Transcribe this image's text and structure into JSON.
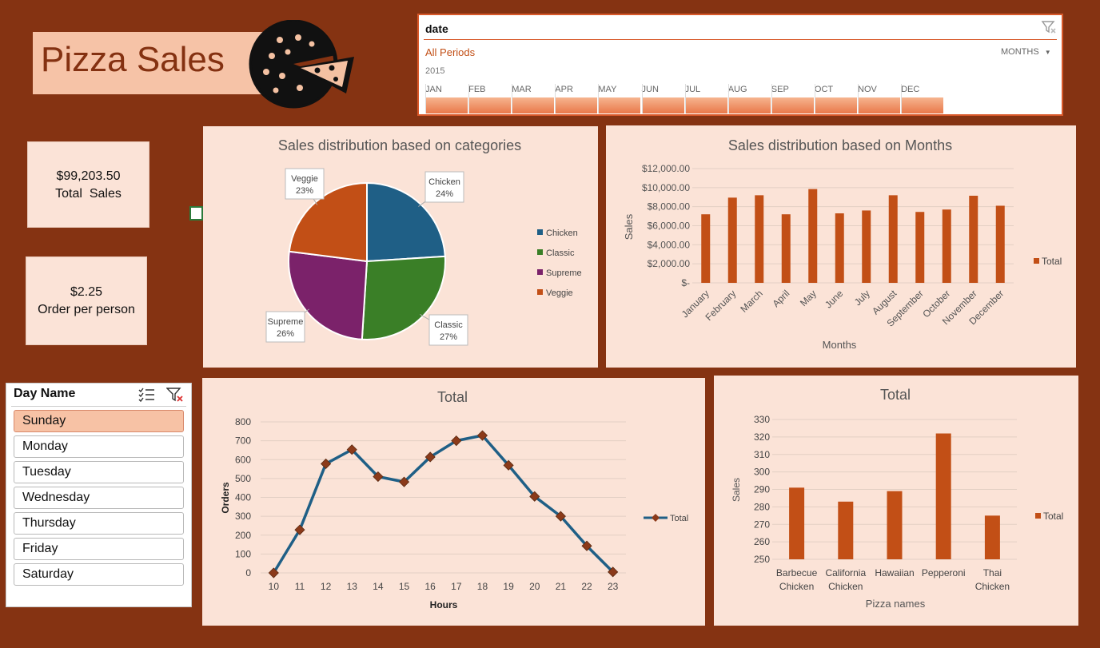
{
  "header": {
    "title": "Pizza Sales",
    "logo_icon": "pizza-icon"
  },
  "kpis": {
    "total_sales_value": "$99,203.50",
    "total_sales_label": "Total  Sales",
    "order_per_person_value": "$2.25",
    "order_per_person_label": "Order per person"
  },
  "timeline": {
    "field": "date",
    "period": "All Periods",
    "unit": "MONTHS",
    "year": "2015",
    "months": [
      "JAN",
      "FEB",
      "MAR",
      "APR",
      "MAY",
      "JUN",
      "JUL",
      "AUG",
      "SEP",
      "OCT",
      "NOV",
      "DEC"
    ],
    "clear_filter_icon": "clear-filter-icon"
  },
  "slicer": {
    "title": "Day Name",
    "multiselect_icon": "multiselect-icon",
    "clear_icon": "clear-filter-icon",
    "items": [
      "Sunday",
      "Monday",
      "Tuesday",
      "Wednesday",
      "Thursday",
      "Friday",
      "Saturday"
    ],
    "selected": "Sunday"
  },
  "chart_data": [
    {
      "type": "pie",
      "title": "Sales distribution based on categories",
      "categories": [
        "Chicken",
        "Classic",
        "Supreme",
        "Veggie"
      ],
      "values": [
        24,
        27,
        26,
        23
      ],
      "labels": [
        "24%",
        "27%",
        "26%",
        "23%"
      ],
      "colors": [
        "#1f5f86",
        "#3a7f27",
        "#7b226a",
        "#c24f16"
      ],
      "legend": "right"
    },
    {
      "type": "bar",
      "title": "Sales distribution based on Months",
      "xlabel": "Months",
      "ylabel": "Sales",
      "categories": [
        "January",
        "February",
        "March",
        "April",
        "May",
        "June",
        "July",
        "August",
        "September",
        "October",
        "November",
        "December"
      ],
      "series": [
        {
          "name": "Total",
          "values": [
            7200,
            8950,
            9200,
            7200,
            9850,
            7300,
            7600,
            9200,
            7450,
            7700,
            9150,
            8100
          ]
        }
      ],
      "ylim": [
        0,
        12000
      ],
      "yticks": [
        "$-",
        "$2,000.00",
        "$4,000.00",
        "$6,000.00",
        "$8,000.00",
        "$10,000.00",
        "$12,000.00"
      ],
      "legend": "right",
      "color": "#c24f16"
    },
    {
      "type": "line",
      "title": "Total",
      "xlabel": "Hours",
      "ylabel": "Orders",
      "x": [
        10,
        11,
        12,
        13,
        14,
        15,
        16,
        17,
        18,
        19,
        20,
        21,
        22,
        23
      ],
      "series": [
        {
          "name": "Total",
          "values": [
            0,
            228,
            578,
            653,
            510,
            482,
            614,
            700,
            728,
            570,
            405,
            300,
            143,
            5
          ]
        }
      ],
      "ylim": [
        0,
        800
      ],
      "yticks": [
        "0",
        "100",
        "200",
        "300",
        "400",
        "500",
        "600",
        "700",
        "800"
      ],
      "legend": "right",
      "line_color": "#1f5f86",
      "marker_color": "#8b3a1a"
    },
    {
      "type": "bar",
      "title": "Total",
      "xlabel": "Pizza names",
      "ylabel": "Sales",
      "categories": [
        [
          "Barbecue",
          "Chicken"
        ],
        [
          "California",
          "Chicken"
        ],
        [
          "Hawaiian"
        ],
        [
          "Pepperoni"
        ],
        [
          "Thai",
          "Chicken"
        ]
      ],
      "series": [
        {
          "name": "Total",
          "values": [
            291,
            283,
            289,
            322,
            275
          ]
        }
      ],
      "ylim": [
        250,
        330
      ],
      "yticks": [
        "250",
        "260",
        "270",
        "280",
        "290",
        "300",
        "310",
        "320",
        "330"
      ],
      "legend": "right",
      "color": "#c24f16"
    }
  ]
}
